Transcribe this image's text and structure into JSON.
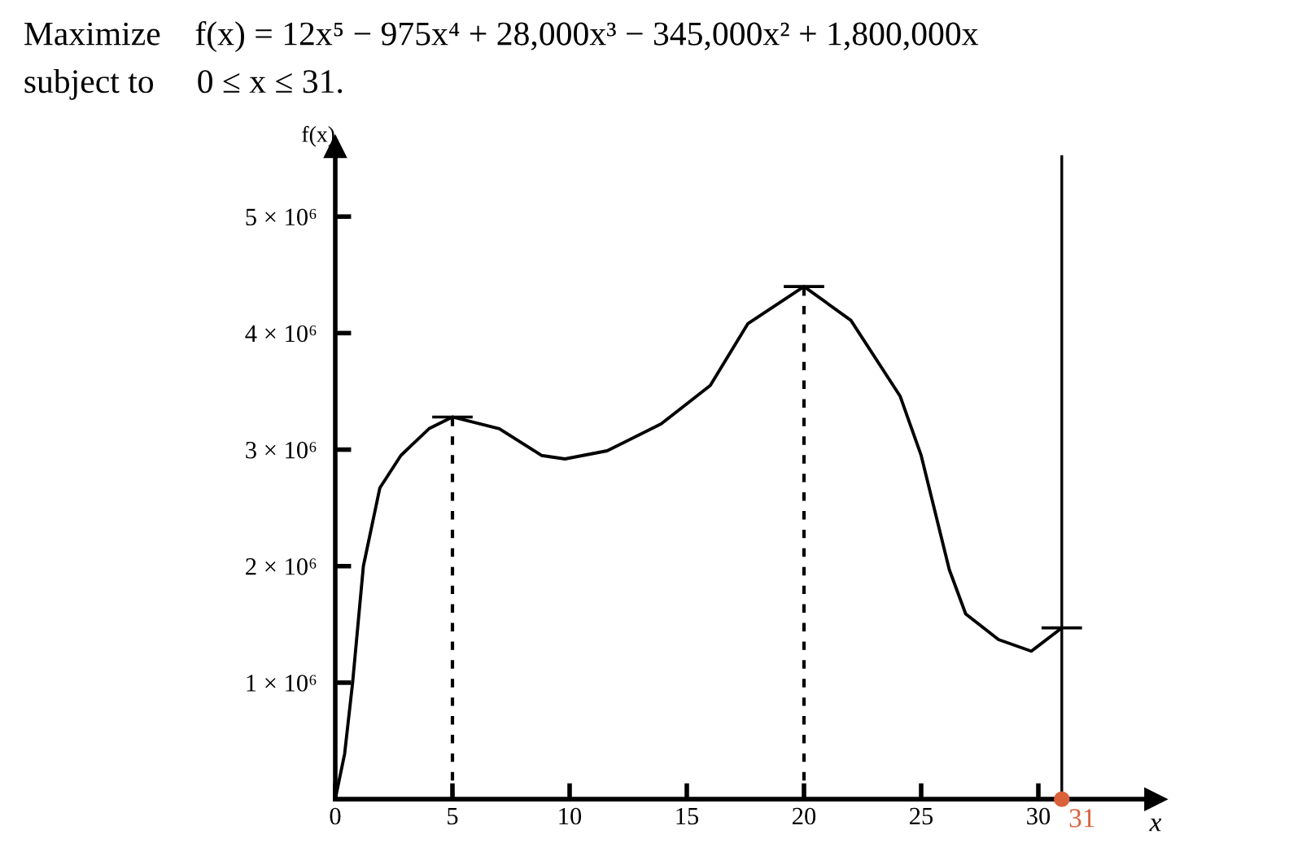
{
  "chart_data": {
    "type": "line",
    "title": "Maximize    f(x) = 12x⁵ − 975x⁴ + 28,000x³ − 345,000x² + 1,800,000x",
    "subtitle": "subject to     0 ≤ x ≤ 31.",
    "xlabel": "x",
    "ylabel": "f(x)",
    "x": [
      0,
      0.4,
      0.74,
      1.2,
      1.9,
      2.8,
      4.0,
      5,
      7.0,
      8.8,
      9.8,
      11.6,
      13.9,
      16.0,
      17.6,
      20,
      22.0,
      24.1,
      25.0,
      26.2,
      26.9,
      28.3,
      29.7,
      31
    ],
    "series": [
      {
        "color": "#000000",
        "values": [
          0,
          390000,
          1000000,
          2000000,
          2670000,
          2950000,
          3180000,
          3280000,
          3180000,
          2950000,
          2920000,
          2990000,
          3220000,
          3550000,
          4080000,
          4400000,
          4110000,
          3460000,
          2950000,
          1970000,
          1590000,
          1370000,
          1270000,
          1470000
        ]
      }
    ],
    "xlim": [
      0,
      35
    ],
    "ylim": [
      0,
      5600000
    ],
    "xticks": [
      0,
      5,
      10,
      15,
      20,
      25,
      30
    ],
    "yticks": [
      {
        "value": 1000000,
        "label": "1 × 10⁶"
      },
      {
        "value": 2000000,
        "label": "2 × 10⁶"
      },
      {
        "value": 3000000,
        "label": "3 × 10⁶"
      },
      {
        "value": 4000000,
        "label": "4 × 10⁶"
      },
      {
        "value": 5000000,
        "label": "5 × 10⁶"
      }
    ],
    "ref_lines": [
      {
        "axis": "x",
        "value": 5,
        "line_style": "dotted"
      },
      {
        "axis": "x",
        "value": 20,
        "line_style": "dotted"
      },
      {
        "axis": "x",
        "value": 31,
        "line_style": "solid"
      }
    ],
    "annotations": [
      {
        "text": "31",
        "x": 31,
        "y": 0
      }
    ],
    "marker": "none",
    "line_style": "solid",
    "grid": false
  }
}
